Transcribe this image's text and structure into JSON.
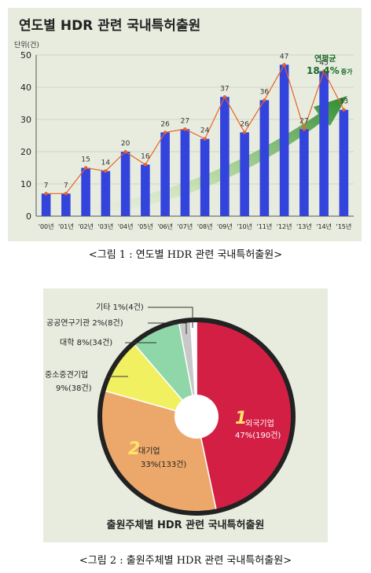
{
  "chart_data": [
    {
      "type": "bar",
      "title": "연도별 HDR 관련 국내특허출원",
      "ylabel": "단위(건)",
      "categories": [
        "'00년",
        "'01년",
        "'02년",
        "'03년",
        "'04년",
        "'05년",
        "'06년",
        "'07년",
        "'08년",
        "'09년",
        "'10년",
        "'11년",
        "'12년",
        "'13년",
        "'14년",
        "'15년"
      ],
      "values": [
        7,
        7,
        15,
        14,
        20,
        16,
        26,
        27,
        24,
        37,
        26,
        36,
        47,
        27,
        45,
        33
      ],
      "ylim": [
        0,
        50
      ],
      "yticks": [
        "0",
        "10",
        "20",
        "30",
        "40",
        "50"
      ],
      "annotation": {
        "line1": "연평균",
        "value": "18.4%",
        "suffix": "증가"
      },
      "colors": {
        "bar": "#3344dd",
        "line": "#e8622a",
        "marker": "#e8622a",
        "arrow": "#2e8b2e"
      }
    },
    {
      "type": "pie",
      "title": "출원주체별 HDR 관련 국내특허출원",
      "slices": [
        {
          "label": "외국기업",
          "detail": "47%(190건)",
          "value": 190,
          "percent": 47,
          "color": "#d41f45",
          "number": "1"
        },
        {
          "label": "대기업",
          "detail": "33%(133건)",
          "value": 133,
          "percent": 33,
          "color": "#eba86a",
          "number": "2"
        },
        {
          "label": "중소중견기업",
          "detail": "9%(38건)",
          "value": 38,
          "percent": 9,
          "color": "#f0f060"
        },
        {
          "label": "대학",
          "detail": "8%(34건)",
          "value": 34,
          "percent": 8,
          "color": "#8fd6a8"
        },
        {
          "label": "공공연구기관",
          "detail": "2%(8건)",
          "value": 8,
          "percent": 2,
          "color": "#c8c8c8"
        },
        {
          "label": "기타",
          "detail": "1%(4건)",
          "value": 4,
          "percent": 1,
          "color": "#ffffff"
        }
      ]
    }
  ],
  "captions": {
    "fig1": "<그림 1 : 연도별 HDR 관련 국내특허출원>",
    "fig2": "<그림 2 : 출원주체별 HDR 관련 국내특허출원>"
  },
  "callouts": {
    "etc": "기타 1%(4건)",
    "public": "공공연구기관 2%(8건)",
    "univ": "대학 8%(34건)",
    "sme_line1": "중소중견기업",
    "sme_line2": "9%(38건)"
  }
}
